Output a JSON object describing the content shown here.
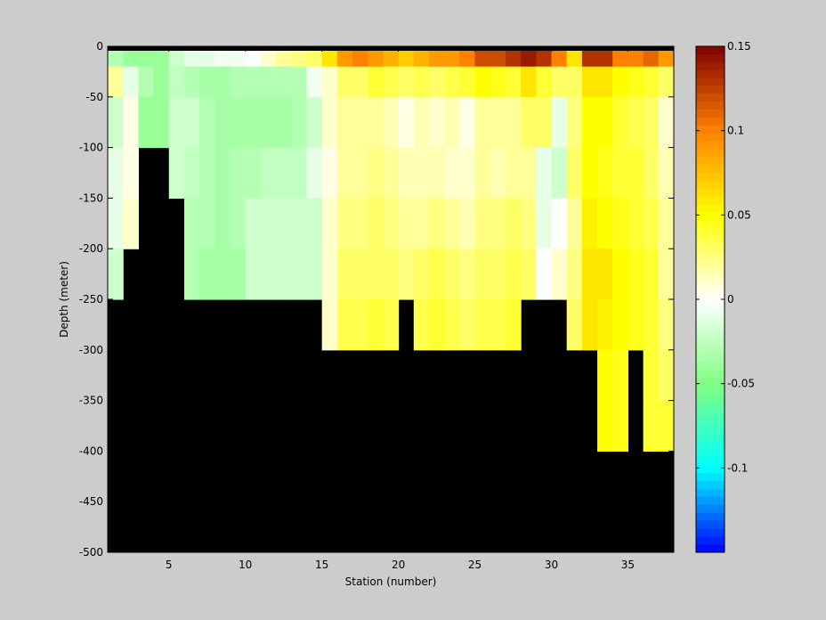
{
  "chart_data": {
    "type": "heatmap",
    "xlabel": "Station (number)",
    "ylabel": "Depth (meter)",
    "xlim": [
      1,
      38
    ],
    "ylim": [
      -500,
      0
    ],
    "x_ticks": [
      5,
      10,
      15,
      20,
      25,
      30,
      35
    ],
    "y_ticks": [
      0,
      -50,
      -100,
      -150,
      -200,
      -250,
      -300,
      -350,
      -400,
      -450,
      -500
    ],
    "colorbar": {
      "range": [
        -0.15,
        0.15
      ],
      "ticks": [
        0.15,
        0.1,
        0.05,
        0,
        -0.05,
        -0.1
      ],
      "colors": [
        "#0000ff",
        "#00ffff",
        "#80ff80",
        "#ffffff",
        "#ffff00",
        "#ff8000",
        "#800000"
      ]
    },
    "layer_depths": [
      -20,
      -50,
      -100,
      -150,
      -200,
      -250,
      -300,
      -350,
      -400
    ],
    "stations": [
      {
        "x": 1,
        "values": [
          -0.03,
          0.02,
          -0.02,
          -0.01,
          -0.01,
          -0.02,
          -0.02
        ],
        "bottom": -250
      },
      {
        "x": 2,
        "values": [
          -0.04,
          -0.01,
          0.005,
          0.005,
          0.01,
          0.01
        ],
        "bottom": -200
      },
      {
        "x": 3,
        "values": [
          -0.04,
          -0.03,
          -0.04
        ],
        "bottom": -150
      },
      {
        "x": 4,
        "values": [
          -0.04,
          -0.04,
          -0.04
        ],
        "bottom": -150
      },
      {
        "x": 5,
        "values": [
          -0.02,
          -0.025,
          -0.02,
          -0.02
        ],
        "bottom": -150
      },
      {
        "x": 6,
        "values": [
          -0.01,
          -0.03,
          -0.02,
          -0.025,
          -0.03,
          -0.03,
          -0.03
        ],
        "bottom": -250
      },
      {
        "x": 7,
        "values": [
          -0.01,
          -0.035,
          -0.03,
          -0.03,
          -0.03,
          -0.035,
          -0.035
        ],
        "bottom": -250
      },
      {
        "x": 8,
        "values": [
          -0.005,
          -0.035,
          -0.035,
          -0.035,
          -0.035,
          -0.035,
          -0.035
        ],
        "bottom": -250
      },
      {
        "x": 9,
        "values": [
          -0.005,
          -0.03,
          -0.035,
          -0.03,
          -0.03,
          -0.035,
          -0.035
        ],
        "bottom": -250
      },
      {
        "x": 10,
        "values": [
          0.0,
          -0.03,
          -0.035,
          -0.03,
          -0.02,
          -0.02,
          -0.02
        ],
        "bottom": -250
      },
      {
        "x": 11,
        "values": [
          0.01,
          -0.03,
          -0.035,
          -0.025,
          -0.02,
          -0.02,
          -0.02
        ],
        "bottom": -250
      },
      {
        "x": 12,
        "values": [
          0.02,
          -0.03,
          -0.035,
          -0.025,
          -0.02,
          -0.02,
          -0.02
        ],
        "bottom": -250
      },
      {
        "x": 13,
        "values": [
          0.025,
          -0.03,
          -0.03,
          -0.025,
          -0.02,
          -0.02,
          -0.02
        ],
        "bottom": -250
      },
      {
        "x": 14,
        "values": [
          0.03,
          -0.005,
          -0.02,
          -0.01,
          -0.02,
          -0.02,
          -0.02
        ],
        "bottom": -250
      },
      {
        "x": 15,
        "values": [
          0.06,
          0.01,
          0.01,
          0.005,
          0.01,
          0.01,
          0.01,
          0.01
        ],
        "bottom": -300
      },
      {
        "x": 16,
        "values": [
          0.09,
          0.03,
          0.02,
          0.02,
          0.025,
          0.03,
          0.035,
          0.03
        ],
        "bottom": -300
      },
      {
        "x": 17,
        "values": [
          0.1,
          0.03,
          0.02,
          0.02,
          0.025,
          0.03,
          0.035,
          0.03
        ],
        "bottom": -300
      },
      {
        "x": 18,
        "values": [
          0.09,
          0.04,
          0.02,
          0.025,
          0.03,
          0.03,
          0.04,
          0.04
        ],
        "bottom": -300
      },
      {
        "x": 19,
        "values": [
          0.08,
          0.035,
          0.015,
          0.02,
          0.025,
          0.03,
          0.035,
          0.03
        ],
        "bottom": -300
      },
      {
        "x": 20,
        "values": [
          0.07,
          0.03,
          0.005,
          0.015,
          0.02,
          0.025,
          0.03,
          0.03
        ],
        "bottom": -250
      },
      {
        "x": 21,
        "values": [
          0.08,
          0.035,
          0.015,
          0.015,
          0.02,
          0.03,
          0.035,
          0.035
        ],
        "bottom": -300
      },
      {
        "x": 22,
        "values": [
          0.09,
          0.03,
          0.01,
          0.015,
          0.025,
          0.035,
          0.04,
          0.035
        ],
        "bottom": -300
      },
      {
        "x": 23,
        "values": [
          0.09,
          0.035,
          0.015,
          0.01,
          0.02,
          0.03,
          0.035,
          0.03
        ],
        "bottom": -300
      },
      {
        "x": 24,
        "values": [
          0.1,
          0.04,
          0.005,
          0.01,
          0.015,
          0.025,
          0.03,
          0.03
        ],
        "bottom": -300
      },
      {
        "x": 25,
        "values": [
          0.12,
          0.05,
          0.02,
          0.02,
          0.025,
          0.03,
          0.035,
          0.035
        ],
        "bottom": -300
      },
      {
        "x": 26,
        "values": [
          0.12,
          0.045,
          0.02,
          0.015,
          0.025,
          0.03,
          0.035,
          0.035
        ],
        "bottom": -300
      },
      {
        "x": 27,
        "values": [
          0.13,
          0.04,
          0.02,
          0.02,
          0.03,
          0.035,
          0.04,
          0.035
        ],
        "bottom": -300
      },
      {
        "x": 28,
        "values": [
          0.14,
          0.06,
          0.03,
          0.02,
          0.025,
          0.03,
          0.035,
          0.035
        ],
        "bottom": -250
      },
      {
        "x": 29,
        "values": [
          0.13,
          0.04,
          0.03,
          -0.01,
          -0.01,
          0.0
        ],
        "bottom": -250
      },
      {
        "x": 30,
        "values": [
          0.1,
          0.03,
          -0.01,
          -0.02,
          0.0,
          0.01
        ],
        "bottom": -250
      },
      {
        "x": 31,
        "values": [
          0.06,
          0.03,
          0.025,
          0.03,
          0.02,
          0.025,
          0.03,
          0.025
        ],
        "bottom": -300
      },
      {
        "x": 32,
        "values": [
          0.13,
          0.06,
          0.05,
          0.05,
          0.055,
          0.06,
          0.06,
          0.055
        ],
        "bottom": -300
      },
      {
        "x": 33,
        "values": [
          0.13,
          0.06,
          0.05,
          0.045,
          0.05,
          0.06,
          0.055,
          0.05,
          0.05
        ],
        "bottom": -400
      },
      {
        "x": 34,
        "values": [
          0.1,
          0.05,
          0.04,
          0.04,
          0.045,
          0.05,
          0.05,
          0.045,
          0.045
        ],
        "bottom": -400
      },
      {
        "x": 35,
        "values": [
          0.1,
          0.045,
          0.035,
          0.04,
          0.04,
          0.045,
          0.045,
          0.04,
          0.04
        ],
        "bottom": -300
      },
      {
        "x": 36,
        "values": [
          0.11,
          0.04,
          0.03,
          0.03,
          0.035,
          0.04,
          0.04,
          0.04,
          0.04
        ],
        "bottom": -400
      },
      {
        "x": 37,
        "values": [
          0.09,
          0.03,
          0.01,
          0.015,
          0.02,
          0.02,
          0.025,
          0.03,
          0.04
        ],
        "bottom": -400
      }
    ]
  }
}
